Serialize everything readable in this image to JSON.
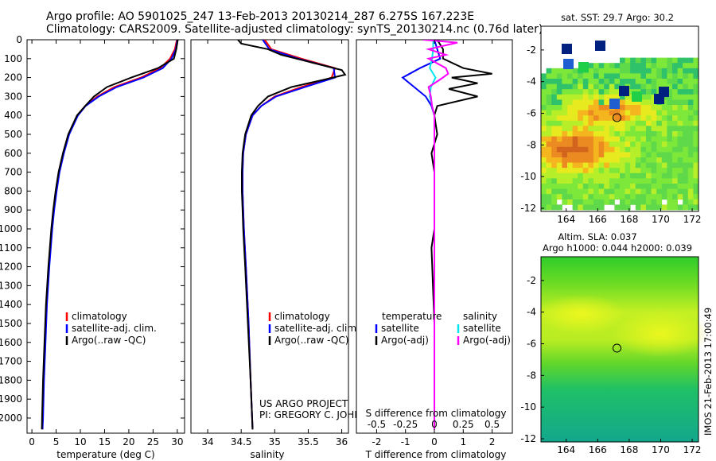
{
  "header": {
    "line1": "Argo profile: AO 5901025_247 13-Feb-2013 20130214_287 6.275S 167.223E",
    "line2": "Climatology: CARS2009. Satellite-adjusted climatology: synTS_20130214.nc (0.76d later)"
  },
  "colors": {
    "climatology": "#ff0000",
    "satellite": "#0000ff",
    "argo": "#000000",
    "sal_satellite": "#00e5ee",
    "sal_argo": "#ff00ff"
  },
  "chart_data": [
    {
      "type": "line",
      "name": "temperature",
      "xlabel": "temperature (deg C)",
      "ylabel": "",
      "xlim": [
        -1,
        31.5
      ],
      "ylim": [
        2080,
        0
      ],
      "xticks": [
        0,
        5,
        10,
        15,
        20,
        25,
        30
      ],
      "yticks": [
        0,
        100,
        200,
        300,
        400,
        500,
        600,
        700,
        800,
        900,
        1000,
        1100,
        1200,
        1300,
        1400,
        1500,
        1600,
        1700,
        1800,
        1900,
        2000
      ],
      "legend": [
        "climatology",
        "satellite-adj. clim.",
        "Argo(..raw -QC)"
      ],
      "legend_position": "lower-center",
      "series": [
        {
          "name": "climatology",
          "depth": [
            0,
            50,
            100,
            150,
            200,
            250,
            300,
            350,
            400,
            500,
            600,
            700,
            800,
            900,
            1000,
            1200,
            1400,
            1600,
            1800,
            2000,
            2060
          ],
          "values": [
            29.9,
            29.5,
            28.5,
            26.5,
            22.5,
            17,
            13.5,
            11,
            9.4,
            7.6,
            6.5,
            5.6,
            5,
            4.5,
            4.1,
            3.5,
            3,
            2.7,
            2.4,
            2.2,
            2.1
          ]
        },
        {
          "name": "satellite-adj. clim.",
          "depth": [
            0,
            50,
            100,
            150,
            200,
            250,
            300,
            350,
            400,
            500,
            600,
            700,
            800,
            900,
            1000,
            1200,
            1400,
            1600,
            1800,
            2000,
            2060
          ],
          "values": [
            30.0,
            29.7,
            28.8,
            27,
            23,
            17.5,
            13.8,
            11.1,
            9.5,
            7.7,
            6.6,
            5.7,
            5.1,
            4.6,
            4.2,
            3.6,
            3.1,
            2.8,
            2.5,
            2.3,
            2.2
          ]
        },
        {
          "name": "Argo(..raw -QC)",
          "depth": [
            0,
            50,
            100,
            150,
            200,
            250,
            300,
            350,
            400,
            500,
            600,
            700,
            800,
            900,
            1000,
            1200,
            1400,
            1600,
            1800,
            2000,
            2060
          ],
          "values": [
            30.1,
            29.8,
            29.3,
            26,
            20.5,
            15.5,
            12.8,
            11,
            9.3,
            7.5,
            6.4,
            5.5,
            4.9,
            4.4,
            4.0,
            3.4,
            2.9,
            2.6,
            2.3,
            2.1,
            2.05
          ]
        }
      ]
    },
    {
      "type": "line",
      "name": "salinity",
      "xlabel": "salinity",
      "ylabel": "",
      "xlim": [
        33.75,
        36.1
      ],
      "ylim": [
        2080,
        0
      ],
      "xticks": [
        34,
        34.5,
        35,
        35.5,
        36
      ],
      "legend": [
        "climatology",
        "satellite-adj. clim.",
        "Argo(..raw -QC)"
      ],
      "legend_position": "lower-center",
      "annotation": [
        "US ARGO PROJECT",
        "PI: GREGORY C. JOHNSON"
      ],
      "series": [
        {
          "name": "climatology",
          "depth": [
            0,
            50,
            100,
            150,
            200,
            250,
            300,
            350,
            400,
            500,
            600,
            700,
            800,
            900,
            1000,
            1200,
            1500,
            1800,
            2060
          ],
          "values": [
            34.85,
            34.95,
            35.4,
            35.9,
            35.85,
            35.4,
            35.0,
            34.8,
            34.67,
            34.57,
            34.53,
            34.52,
            34.52,
            34.53,
            34.54,
            34.57,
            34.61,
            34.64,
            34.67
          ]
        },
        {
          "name": "satellite-adj. clim.",
          "depth": [
            0,
            50,
            100,
            150,
            200,
            250,
            300,
            350,
            400,
            500,
            600,
            700,
            800,
            900,
            1000,
            1200,
            1500,
            1800,
            2060
          ],
          "values": [
            34.82,
            34.92,
            35.35,
            35.88,
            35.9,
            35.45,
            35.02,
            34.8,
            34.67,
            34.57,
            34.53,
            34.52,
            34.52,
            34.53,
            34.54,
            34.57,
            34.61,
            34.64,
            34.67
          ]
        },
        {
          "name": "Argo(..raw -QC)",
          "depth": [
            0,
            20,
            50,
            80,
            120,
            160,
            185,
            210,
            250,
            300,
            350,
            400,
            500,
            600,
            700,
            800,
            900,
            1000,
            1200,
            1500,
            1800,
            2060
          ],
          "values": [
            34.45,
            34.5,
            34.9,
            35.1,
            35.55,
            36.0,
            36.05,
            35.75,
            35.25,
            34.9,
            34.75,
            34.65,
            34.56,
            34.52,
            34.51,
            34.51,
            34.52,
            34.53,
            34.56,
            34.6,
            34.64,
            34.67
          ]
        }
      ]
    },
    {
      "type": "line",
      "name": "difference",
      "xlabel": "T difference from climatology",
      "xlabel_top": "S difference from climatology",
      "ylabel": "",
      "xlim": [
        -2.7,
        2.7
      ],
      "ylim": [
        2080,
        0
      ],
      "xticks": [
        -2,
        -1,
        0,
        1,
        2
      ],
      "xticks_top": [
        -0.5,
        -0.25,
        0,
        0.25,
        0.5
      ],
      "legend_headers": [
        "temperature",
        "salinity"
      ],
      "legend": [
        "satellite",
        "Argo(-adj)",
        "satellite",
        "Argo(-adj)"
      ],
      "legend_position": "lower-center",
      "series": [
        {
          "name": "temperature satellite",
          "depth": [
            0,
            50,
            100,
            150,
            200,
            250,
            300,
            350,
            400,
            500,
            700,
            1000,
            1500,
            2060
          ],
          "values": [
            0,
            0.1,
            0.2,
            -0.5,
            -1.1,
            -0.7,
            -0.3,
            -0.1,
            0,
            0,
            0,
            0,
            0,
            0
          ]
        },
        {
          "name": "temperature Argo(-adj)",
          "depth": [
            0,
            50,
            100,
            150,
            180,
            200,
            230,
            260,
            300,
            350,
            400,
            500,
            600,
            700,
            1000,
            1100,
            1500,
            2060
          ],
          "values": [
            0.1,
            0.3,
            0.3,
            1.0,
            2.0,
            0.6,
            1.5,
            0.5,
            1.5,
            0.1,
            0,
            0.1,
            -0.1,
            0,
            0,
            -0.1,
            0,
            0
          ]
        },
        {
          "name": "salinity satellite",
          "depth": [
            0,
            50,
            100,
            150,
            200,
            250,
            300,
            350,
            400,
            600,
            1000,
            2060
          ],
          "values": [
            -0.01,
            -0.01,
            -0.02,
            -0.04,
            0.01,
            -0.03,
            -0.04,
            -0.02,
            0,
            0,
            0,
            0
          ]
        },
        {
          "name": "salinity Argo(-adj)",
          "depth": [
            0,
            15,
            50,
            80,
            100,
            150,
            180,
            210,
            250,
            300,
            350,
            400,
            500,
            700,
            1000,
            2060
          ],
          "values": [
            -0.1,
            0.2,
            -0.05,
            0.1,
            -0.05,
            0.1,
            0.12,
            0.05,
            -0.05,
            -0.03,
            -0.02,
            0,
            0,
            0,
            0,
            0
          ]
        }
      ]
    },
    {
      "type": "heatmap",
      "name": "sst-map",
      "title": "sat. SST: 29.7  Argo: 30.2",
      "xlim": [
        162.4,
        172.4
      ],
      "ylim": [
        -12.2,
        -0.5
      ],
      "xticks": [
        164,
        166,
        168,
        170,
        172
      ],
      "yticks": [
        -2,
        -4,
        -6,
        -8,
        -10,
        -12
      ],
      "marker": {
        "lon": 167.223,
        "lat": -6.275
      }
    },
    {
      "type": "heatmap",
      "name": "sla-map",
      "title_line1": "Altim. SLA: 0.037",
      "title_line2": "Argo h1000: 0.044 h2000: 0.039",
      "xlim": [
        162.4,
        172.4
      ],
      "ylim": [
        -12.2,
        -0.5
      ],
      "xticks": [
        164,
        166,
        168,
        170,
        172
      ],
      "yticks": [
        -2,
        -4,
        -6,
        -8,
        -10,
        -12
      ],
      "marker": {
        "lon": 167.223,
        "lat": -6.275
      }
    }
  ],
  "side_label": "IMOS 21-Feb-2013 17:00:49"
}
